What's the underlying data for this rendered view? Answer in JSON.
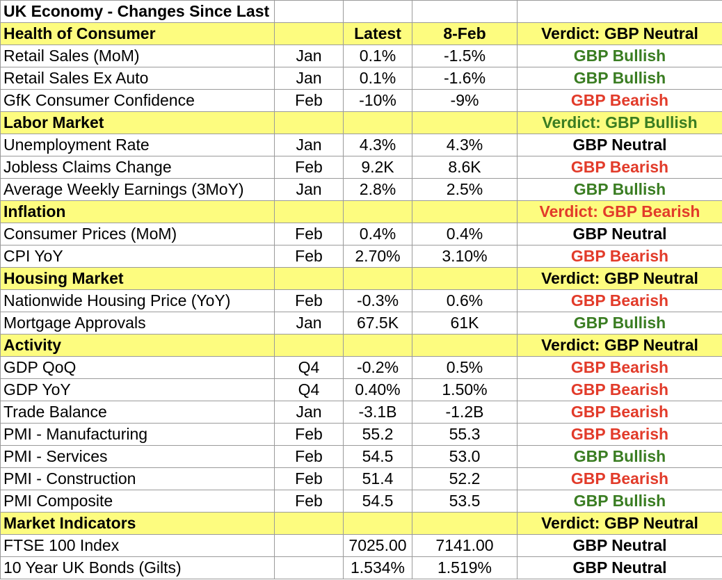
{
  "title": "UK Economy - Changes Since Last BoE Meeting",
  "columns": {
    "latest": "Latest",
    "previous": "8-Feb"
  },
  "colors": {
    "neutral": "#000000",
    "bullish": "#3a7d22",
    "bearish": "#e23b2a",
    "section_bg": "#fdfc7f"
  },
  "sections": [
    {
      "name": "Health of Consumer",
      "show_headers": true,
      "verdict": "Verdict: GBP Neutral",
      "verdict_tone": "neutral",
      "rows": [
        {
          "indicator": "Retail Sales (MoM)",
          "period": "Jan",
          "latest": "0.1%",
          "previous": "-1.5%",
          "verdict": "GBP Bullish",
          "tone": "bullish"
        },
        {
          "indicator": "Retail Sales Ex Auto",
          "period": "Jan",
          "latest": "0.1%",
          "previous": "-1.6%",
          "verdict": "GBP Bullish",
          "tone": "bullish"
        },
        {
          "indicator": "GfK Consumer Confidence",
          "period": "Feb",
          "latest": "-10%",
          "previous": "-9%",
          "verdict": "GBP Bearish",
          "tone": "bearish"
        }
      ]
    },
    {
      "name": "Labor Market",
      "show_headers": false,
      "verdict": "Verdict: GBP Bullish",
      "verdict_tone": "bullish",
      "rows": [
        {
          "indicator": "Unemployment Rate",
          "period": "Jan",
          "latest": "4.3%",
          "previous": "4.3%",
          "verdict": "GBP Neutral",
          "tone": "neutral"
        },
        {
          "indicator": "Jobless Claims Change",
          "period": "Feb",
          "latest": "9.2K",
          "previous": "8.6K",
          "verdict": "GBP Bearish",
          "tone": "bearish"
        },
        {
          "indicator": "Average Weekly Earnings (3MoY)",
          "period": "Jan",
          "latest": "2.8%",
          "previous": "2.5%",
          "verdict": "GBP Bullish",
          "tone": "bullish"
        }
      ]
    },
    {
      "name": "Inflation",
      "show_headers": false,
      "verdict": "Verdict: GBP Bearish",
      "verdict_tone": "bearish",
      "rows": [
        {
          "indicator": "Consumer Prices (MoM)",
          "period": "Feb",
          "latest": "0.4%",
          "previous": "0.4%",
          "verdict": "GBP Neutral",
          "tone": "neutral"
        },
        {
          "indicator": "CPI YoY",
          "period": "Feb",
          "latest": "2.70%",
          "previous": "3.10%",
          "verdict": "GBP Bearish",
          "tone": "bearish"
        }
      ]
    },
    {
      "name": "Housing Market",
      "show_headers": false,
      "verdict": "Verdict: GBP Neutral",
      "verdict_tone": "neutral",
      "rows": [
        {
          "indicator": "Nationwide Housing Price (YoY)",
          "period": "Feb",
          "latest": "-0.3%",
          "previous": "0.6%",
          "verdict": "GBP Bearish",
          "tone": "bearish"
        },
        {
          "indicator": "Mortgage Approvals",
          "period": "Jan",
          "latest": "67.5K",
          "previous": "61K",
          "verdict": "GBP Bullish",
          "tone": "bullish"
        }
      ]
    },
    {
      "name": "Activity",
      "show_headers": false,
      "verdict": "Verdict: GBP Neutral",
      "verdict_tone": "neutral",
      "rows": [
        {
          "indicator": "GDP QoQ",
          "period": "Q4",
          "latest": "-0.2%",
          "previous": "0.5%",
          "verdict": "GBP Bearish",
          "tone": "bearish"
        },
        {
          "indicator": "GDP YoY",
          "period": "Q4",
          "latest": "0.40%",
          "previous": "1.50%",
          "verdict": "GBP Bearish",
          "tone": "bearish"
        },
        {
          "indicator": "Trade Balance",
          "period": "Jan",
          "latest": "-3.1B",
          "previous": "-1.2B",
          "verdict": "GBP Bearish",
          "tone": "bearish"
        },
        {
          "indicator": "PMI - Manufacturing",
          "period": "Feb",
          "latest": "55.2",
          "previous": "55.3",
          "verdict": "GBP Bearish",
          "tone": "bearish"
        },
        {
          "indicator": "PMI - Services",
          "period": "Feb",
          "latest": "54.5",
          "previous": "53.0",
          "verdict": "GBP Bullish",
          "tone": "bullish"
        },
        {
          "indicator": "PMI - Construction",
          "period": "Feb",
          "latest": "51.4",
          "previous": "52.2",
          "verdict": "GBP Bearish",
          "tone": "bearish"
        },
        {
          "indicator": "PMI Composite",
          "period": "Feb",
          "latest": "54.5",
          "previous": "53.5",
          "verdict": "GBP Bullish",
          "tone": "bullish"
        }
      ]
    },
    {
      "name": "Market Indicators",
      "show_headers": false,
      "verdict": "Verdict: GBP Neutral",
      "verdict_tone": "neutral",
      "rows": [
        {
          "indicator": "FTSE 100 Index",
          "period": "",
          "latest": "7025.00",
          "previous": "7141.00",
          "verdict": "GBP Neutral",
          "tone": "neutral"
        },
        {
          "indicator": "10 Year UK Bonds (Gilts)",
          "period": "",
          "latest": "1.534%",
          "previous": "1.519%",
          "verdict": "GBP Neutral",
          "tone": "neutral"
        }
      ]
    }
  ]
}
